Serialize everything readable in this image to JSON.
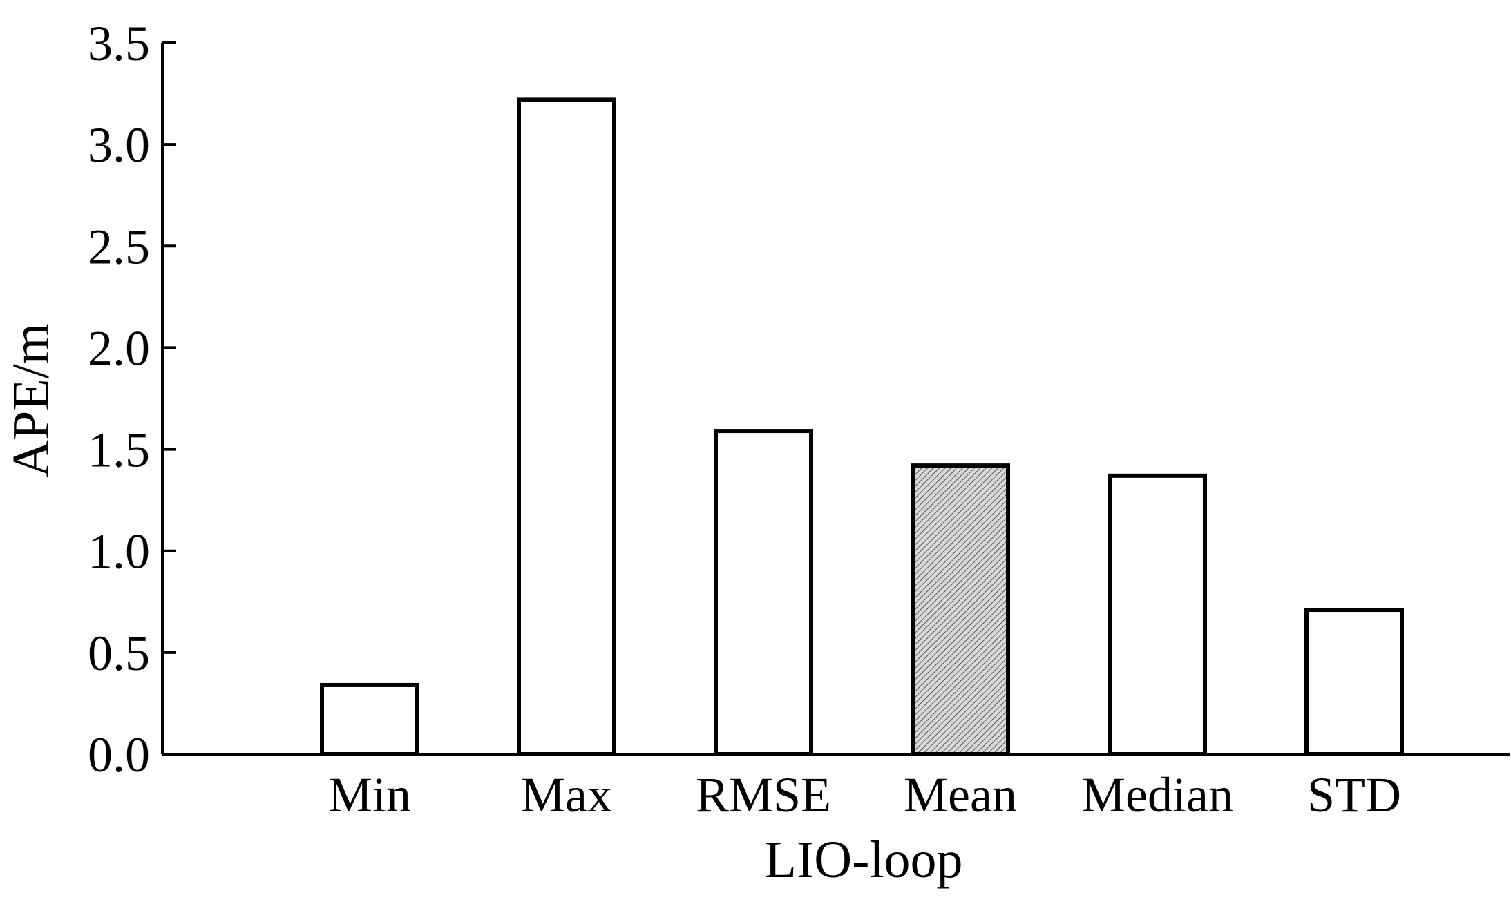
{
  "chart_data": {
    "type": "bar",
    "title": "",
    "xlabel": "LIO-loop",
    "ylabel": "APE/m",
    "categories": [
      "Min",
      "Max",
      "RMSE",
      "Mean",
      "Median",
      "STD"
    ],
    "values": [
      0.34,
      3.22,
      1.59,
      1.42,
      1.37,
      0.71
    ],
    "highlighted_category": "Mean",
    "ylim": [
      0,
      3.5
    ],
    "yticks": [
      "0.0",
      "0.5",
      "1.0",
      "1.5",
      "2.0",
      "2.5",
      "3.0",
      "3.5"
    ],
    "grid": false,
    "legend": "none",
    "colors": {
      "bar_fill": "#ffffff",
      "bar_stroke": "#000000",
      "highlight_fill": "#d0d0d0",
      "axis": "#000000"
    }
  }
}
